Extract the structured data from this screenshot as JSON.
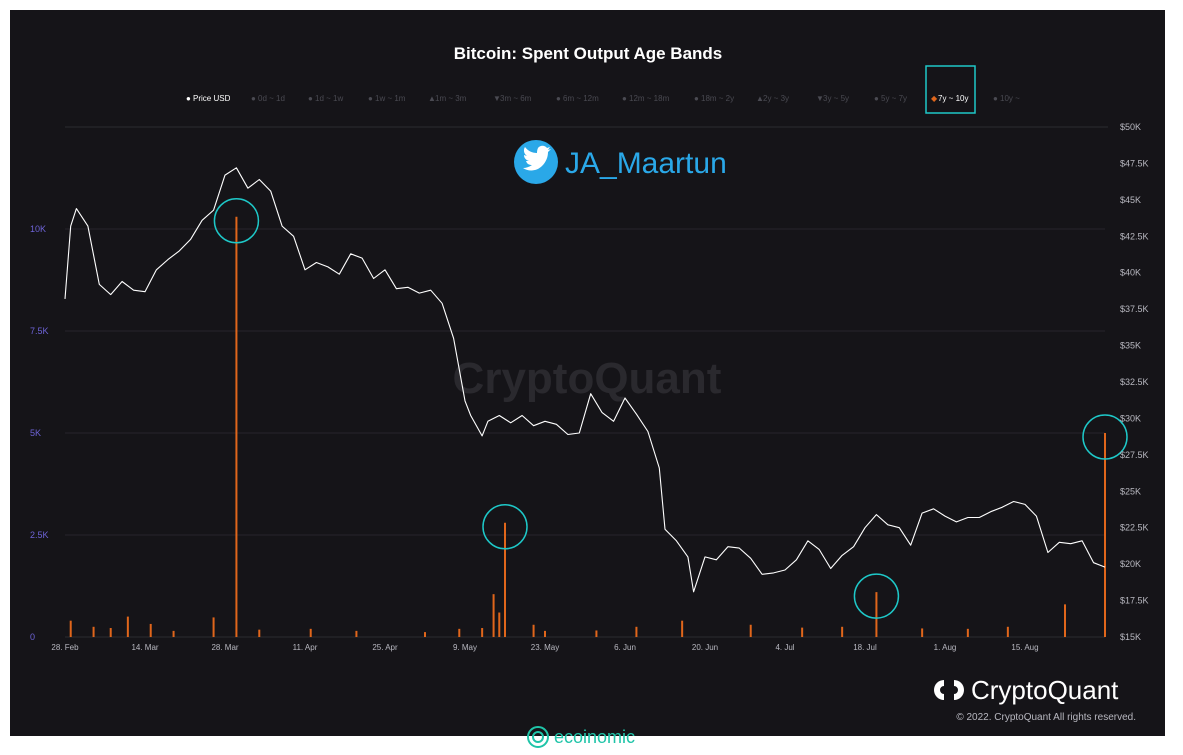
{
  "footer": {
    "site": "ecoinomic"
  },
  "watermark": "CryptoQuant",
  "social": {
    "icon": "twitter-bird-icon",
    "handle": "JA_Maartun"
  },
  "branding": {
    "logo_icon": "cryptoquant-logo-icon",
    "name": "CryptoQuant",
    "copyright": "© 2022. CryptoQuant All rights reserved."
  },
  "colors": {
    "background": "#151418",
    "price_line": "#ffffff",
    "bars": "#e0661b",
    "highlight": "#1ec8c8",
    "left_axis": "#6d63d6",
    "twitter": "#2aa8e8"
  },
  "chart_data": {
    "type": "bar",
    "title": "Bitcoin: Spent Output Age Bands",
    "legend": [
      {
        "label": "Price USD",
        "marker": "●",
        "active": true
      },
      {
        "label": "0d ~ 1d",
        "marker": "●",
        "active": false
      },
      {
        "label": "1d ~ 1w",
        "marker": "●",
        "active": false
      },
      {
        "label": "1w ~ 1m",
        "marker": "●",
        "active": false
      },
      {
        "label": "1m ~ 3m",
        "marker": "▲",
        "active": false
      },
      {
        "label": "3m ~ 6m",
        "marker": "▼",
        "active": false
      },
      {
        "label": "6m ~ 12m",
        "marker": "●",
        "active": false
      },
      {
        "label": "12m ~ 18m",
        "marker": "●",
        "active": false
      },
      {
        "label": "18m ~ 2y",
        "marker": "●",
        "active": false
      },
      {
        "label": "2y ~ 3y",
        "marker": "▲",
        "active": false
      },
      {
        "label": "3y ~ 5y",
        "marker": "▼",
        "active": false
      },
      {
        "label": "5y ~ 7y",
        "marker": "●",
        "active": false
      },
      {
        "label": "7y ~ 10y",
        "marker": "◆",
        "active": true,
        "highlighted": true
      },
      {
        "label": "10y ~",
        "marker": "●",
        "active": false
      }
    ],
    "x_ticks": [
      "28. Feb",
      "14. Mar",
      "28. Mar",
      "11. Apr",
      "25. Apr",
      "9. May",
      "23. May",
      "6. Jun",
      "20. Jun",
      "4. Jul",
      "18. Jul",
      "1. Aug",
      "15. Aug"
    ],
    "x_range": [
      "2022-02-28",
      "2022-08-29"
    ],
    "y_left": {
      "ticks": [
        "0",
        "2.5K",
        "5K",
        "7.5K",
        "10K"
      ],
      "range": [
        0,
        12500
      ]
    },
    "y_right": {
      "ticks": [
        "$15K",
        "$17.5K",
        "$20K",
        "$22.5K",
        "$25K",
        "$27.5K",
        "$30K",
        "$32.5K",
        "$35K",
        "$37.5K",
        "$40K",
        "$42.5K",
        "$45K",
        "$47.5K",
        "$50K"
      ],
      "range": [
        15000,
        50000
      ]
    },
    "series": [
      {
        "name": "Price USD",
        "type": "line",
        "axis": "right",
        "points": [
          [
            "2022-02-28",
            38200
          ],
          [
            "2022-03-01",
            43200
          ],
          [
            "2022-03-02",
            44400
          ],
          [
            "2022-03-04",
            43200
          ],
          [
            "2022-03-06",
            39200
          ],
          [
            "2022-03-08",
            38500
          ],
          [
            "2022-03-10",
            39400
          ],
          [
            "2022-03-12",
            38800
          ],
          [
            "2022-03-14",
            38700
          ],
          [
            "2022-03-16",
            40200
          ],
          [
            "2022-03-18",
            40900
          ],
          [
            "2022-03-20",
            41500
          ],
          [
            "2022-03-22",
            42300
          ],
          [
            "2022-03-24",
            43600
          ],
          [
            "2022-03-26",
            44300
          ],
          [
            "2022-03-28",
            46700
          ],
          [
            "2022-03-30",
            47200
          ],
          [
            "2022-04-01",
            45800
          ],
          [
            "2022-04-03",
            46400
          ],
          [
            "2022-04-05",
            45600
          ],
          [
            "2022-04-07",
            43200
          ],
          [
            "2022-04-09",
            42500
          ],
          [
            "2022-04-11",
            40200
          ],
          [
            "2022-04-13",
            40700
          ],
          [
            "2022-04-15",
            40400
          ],
          [
            "2022-04-17",
            39900
          ],
          [
            "2022-04-19",
            41300
          ],
          [
            "2022-04-21",
            41000
          ],
          [
            "2022-04-23",
            39600
          ],
          [
            "2022-04-25",
            40200
          ],
          [
            "2022-04-27",
            38900
          ],
          [
            "2022-04-29",
            39000
          ],
          [
            "2022-05-01",
            38600
          ],
          [
            "2022-05-03",
            38800
          ],
          [
            "2022-05-05",
            37900
          ],
          [
            "2022-05-07",
            35500
          ],
          [
            "2022-05-09",
            31200
          ],
          [
            "2022-05-10",
            30200
          ],
          [
            "2022-05-12",
            28800
          ],
          [
            "2022-05-13",
            29800
          ],
          [
            "2022-05-15",
            30200
          ],
          [
            "2022-05-17",
            29700
          ],
          [
            "2022-05-19",
            30200
          ],
          [
            "2022-05-21",
            29500
          ],
          [
            "2022-05-23",
            29800
          ],
          [
            "2022-05-25",
            29600
          ],
          [
            "2022-05-27",
            28900
          ],
          [
            "2022-05-29",
            29000
          ],
          [
            "2022-05-31",
            31700
          ],
          [
            "2022-06-02",
            30400
          ],
          [
            "2022-06-04",
            29800
          ],
          [
            "2022-06-06",
            31400
          ],
          [
            "2022-06-08",
            30300
          ],
          [
            "2022-06-10",
            29100
          ],
          [
            "2022-06-12",
            26600
          ],
          [
            "2022-06-13",
            22400
          ],
          [
            "2022-06-15",
            21600
          ],
          [
            "2022-06-17",
            20500
          ],
          [
            "2022-06-18",
            18100
          ],
          [
            "2022-06-20",
            20500
          ],
          [
            "2022-06-22",
            20300
          ],
          [
            "2022-06-24",
            21200
          ],
          [
            "2022-06-26",
            21100
          ],
          [
            "2022-06-28",
            20400
          ],
          [
            "2022-06-30",
            19300
          ],
          [
            "2022-07-02",
            19400
          ],
          [
            "2022-07-04",
            19600
          ],
          [
            "2022-07-06",
            20300
          ],
          [
            "2022-07-08",
            21600
          ],
          [
            "2022-07-10",
            21000
          ],
          [
            "2022-07-12",
            19700
          ],
          [
            "2022-07-14",
            20600
          ],
          [
            "2022-07-16",
            21200
          ],
          [
            "2022-07-18",
            22500
          ],
          [
            "2022-07-20",
            23400
          ],
          [
            "2022-07-22",
            22700
          ],
          [
            "2022-07-24",
            22500
          ],
          [
            "2022-07-26",
            21300
          ],
          [
            "2022-07-28",
            23500
          ],
          [
            "2022-07-30",
            23800
          ],
          [
            "2022-08-01",
            23300
          ],
          [
            "2022-08-03",
            22900
          ],
          [
            "2022-08-05",
            23200
          ],
          [
            "2022-08-07",
            23200
          ],
          [
            "2022-08-09",
            23600
          ],
          [
            "2022-08-11",
            23900
          ],
          [
            "2022-08-13",
            24300
          ],
          [
            "2022-08-15",
            24100
          ],
          [
            "2022-08-17",
            23300
          ],
          [
            "2022-08-19",
            20800
          ],
          [
            "2022-08-21",
            21500
          ],
          [
            "2022-08-23",
            21400
          ],
          [
            "2022-08-25",
            21600
          ],
          [
            "2022-08-27",
            20100
          ],
          [
            "2022-08-29",
            19800
          ]
        ]
      },
      {
        "name": "7y ~ 10y",
        "type": "bar",
        "axis": "left",
        "points": [
          [
            "2022-03-01",
            400
          ],
          [
            "2022-03-05",
            250
          ],
          [
            "2022-03-08",
            220
          ],
          [
            "2022-03-11",
            500
          ],
          [
            "2022-03-15",
            320
          ],
          [
            "2022-03-19",
            150
          ],
          [
            "2022-03-26",
            480
          ],
          [
            "2022-03-30",
            10300
          ],
          [
            "2022-04-03",
            180
          ],
          [
            "2022-04-12",
            200
          ],
          [
            "2022-04-20",
            150
          ],
          [
            "2022-05-02",
            120
          ],
          [
            "2022-05-08",
            200
          ],
          [
            "2022-05-12",
            220
          ],
          [
            "2022-05-14",
            1050
          ],
          [
            "2022-05-15",
            600
          ],
          [
            "2022-05-16",
            2800
          ],
          [
            "2022-05-21",
            300
          ],
          [
            "2022-05-23",
            150
          ],
          [
            "2022-06-01",
            160
          ],
          [
            "2022-06-08",
            250
          ],
          [
            "2022-06-16",
            400
          ],
          [
            "2022-06-28",
            300
          ],
          [
            "2022-07-07",
            230
          ],
          [
            "2022-07-14",
            250
          ],
          [
            "2022-07-20",
            1100
          ],
          [
            "2022-07-28",
            210
          ],
          [
            "2022-08-05",
            200
          ],
          [
            "2022-08-12",
            250
          ],
          [
            "2022-08-22",
            800
          ],
          [
            "2022-08-29",
            5000
          ]
        ]
      }
    ],
    "highlighted_points": [
      {
        "series": "7y ~ 10y",
        "x": "2022-03-30",
        "y": 10300
      },
      {
        "series": "7y ~ 10y",
        "x": "2022-05-16",
        "y": 2800
      },
      {
        "series": "7y ~ 10y",
        "x": "2022-07-20",
        "y": 1100
      },
      {
        "series": "7y ~ 10y",
        "x": "2022-08-29",
        "y": 5000
      }
    ],
    "grid": true,
    "legend_position": "top"
  }
}
